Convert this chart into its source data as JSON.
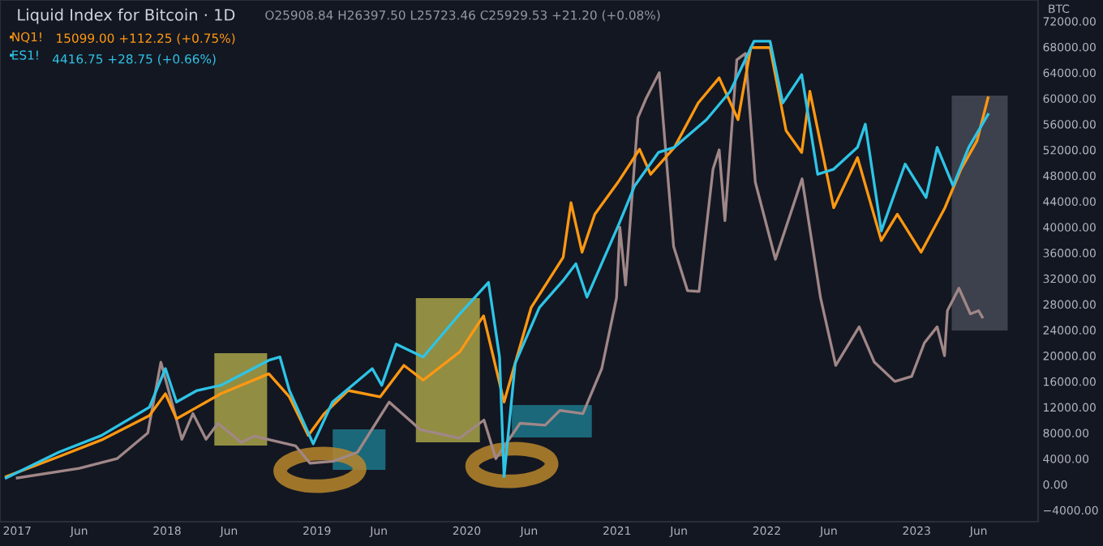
{
  "chart_data": {
    "type": "line",
    "title": "Liquid Index for Bitcoin · 1D",
    "subtitle": "O25908.84 H26397.50 L25723.46 C25929.53 +21.20 (+0.08%)",
    "ylabel": "BTC",
    "annotations": [
      "15099.00 +112.25 (+0.75%)",
      "4416.75 +28.75 (+0.66%)"
    ],
    "xlim": [
      "2016-11-20",
      "2023-10-24"
    ],
    "xticks": [
      {
        "value": "2017-01-01",
        "label": "2017"
      },
      {
        "value": "2017-06-01",
        "label": "Jun"
      },
      {
        "value": "2018-01-01",
        "label": "2018"
      },
      {
        "value": "2018-06-01",
        "label": "Jun"
      },
      {
        "value": "2019-01-01",
        "label": "2019"
      },
      {
        "value": "2019-06-01",
        "label": "Jun"
      },
      {
        "value": "2020-01-01",
        "label": "2020"
      },
      {
        "value": "2020-06-01",
        "label": "Jun"
      },
      {
        "value": "2021-01-01",
        "label": "2021"
      },
      {
        "value": "2021-06-01",
        "label": "Jun"
      },
      {
        "value": "2022-01-01",
        "label": "2022"
      },
      {
        "value": "2022-06-01",
        "label": "Jun"
      },
      {
        "value": "2023-01-01",
        "label": "2023"
      },
      {
        "value": "2023-06-01",
        "label": "Jun"
      }
    ],
    "ylim": [
      -5800,
      75300
    ],
    "yticks": [
      {
        "value": -4000,
        "label": "−4000.00"
      },
      {
        "value": 0,
        "label": "0.00"
      },
      {
        "value": 4000,
        "label": "4000.00"
      },
      {
        "value": 8000,
        "label": "8000.00"
      },
      {
        "value": 12000,
        "label": "12000.00"
      },
      {
        "value": 16000,
        "label": "16000.00"
      },
      {
        "value": 20000,
        "label": "20000.00"
      },
      {
        "value": 24000,
        "label": "24000.00"
      },
      {
        "value": 28000,
        "label": "28000.00"
      },
      {
        "value": 32000,
        "label": "32000.00"
      },
      {
        "value": 36000,
        "label": "36000.00"
      },
      {
        "value": 40000,
        "label": "40000.00"
      },
      {
        "value": 44000,
        "label": "44000.00"
      },
      {
        "value": 48000,
        "label": "48000.00"
      },
      {
        "value": 52000,
        "label": "52000.00"
      },
      {
        "value": 56000,
        "label": "56000.00"
      },
      {
        "value": 60000,
        "label": "60000.00"
      },
      {
        "value": 64000,
        "label": "64000.00"
      },
      {
        "value": 68000,
        "label": "68000.00"
      },
      {
        "value": 72000,
        "label": "72000.00"
      }
    ],
    "grid": false,
    "legend": "top left",
    "series": [
      {
        "color": "#a08787",
        "x": [
          "2017-01-01",
          "2017-06-01",
          "2017-09-01",
          "2017-11-15",
          "2017-12-17",
          "2018-02-06",
          "2018-03-05",
          "2018-04-06",
          "2018-05-05",
          "2018-07-01",
          "2018-08-01",
          "2018-11-10",
          "2018-12-15",
          "2019-02-10",
          "2019-04-10",
          "2019-06-26",
          "2019-09-10",
          "2019-12-15",
          "2020-02-12",
          "2020-03-12",
          "2020-05-10",
          "2020-07-10",
          "2020-08-15",
          "2020-10-10",
          "2020-11-25",
          "2020-12-31",
          "2021-01-08",
          "2021-01-22",
          "2021-02-21",
          "2021-03-13",
          "2021-04-14",
          "2021-05-19",
          "2021-06-22",
          "2021-07-20",
          "2021-08-23",
          "2021-09-07",
          "2021-09-21",
          "2021-10-20",
          "2021-11-10",
          "2021-12-04",
          "2022-01-22",
          "2022-03-28",
          "2022-05-12",
          "2022-06-18",
          "2022-08-14",
          "2022-09-20",
          "2022-11-09",
          "2022-12-20",
          "2023-01-20",
          "2023-02-20",
          "2023-03-10",
          "2023-03-17",
          "2023-04-14",
          "2023-05-12",
          "2023-06-01",
          "2023-06-10"
        ],
        "values": [
          1000,
          2500,
          4000,
          8000,
          19000,
          7000,
          11000,
          7000,
          9500,
          6500,
          7500,
          6000,
          3300,
          3600,
          5000,
          12800,
          8500,
          7200,
          10000,
          4000,
          9500,
          9200,
          11500,
          11000,
          18000,
          29000,
          40000,
          31000,
          57000,
          60000,
          64000,
          37000,
          30100,
          30000,
          49000,
          52000,
          41000,
          66000,
          67000,
          47000,
          35000,
          47500,
          29000,
          18500,
          24500,
          19000,
          16000,
          16800,
          22000,
          24500,
          20000,
          27000,
          30500,
          26500,
          27000,
          26000
        ]
      },
      {
        "name": "NQ1!",
        "color": "#ff9811",
        "x": [
          "2016-12-05",
          "2017-04-12",
          "2017-07-25",
          "2017-11-19",
          "2017-12-28",
          "2018-01-24",
          "2018-03-15",
          "2018-05-12",
          "2018-09-06",
          "2018-10-26",
          "2018-12-11",
          "2019-01-19",
          "2019-03-18",
          "2019-06-04",
          "2019-08-01",
          "2019-09-17",
          "2019-12-15",
          "2020-02-11",
          "2020-04-01",
          "2020-06-06",
          "2020-08-23",
          "2020-09-11",
          "2020-10-08",
          "2020-11-08",
          "2021-01-06",
          "2021-02-25",
          "2021-03-24",
          "2021-05-21",
          "2021-07-18",
          "2021-09-07",
          "2021-10-23",
          "2021-11-23",
          "2022-01-09",
          "2022-02-17",
          "2022-03-27",
          "2022-04-16",
          "2022-06-13",
          "2022-08-10",
          "2022-10-07",
          "2022-11-15",
          "2023-01-12",
          "2023-03-11",
          "2023-04-19",
          "2023-05-28",
          "2023-06-24"
        ],
        "values": [
          1200,
          4300,
          6900,
          10700,
          14100,
          10200,
          12000,
          14100,
          17200,
          13600,
          7600,
          11000,
          14600,
          13600,
          18500,
          16200,
          20600,
          26200,
          12800,
          27500,
          35300,
          43800,
          36100,
          42000,
          47200,
          52100,
          48200,
          52400,
          59300,
          63200,
          56700,
          67900,
          67900,
          55000,
          51600,
          61100,
          43000,
          50800,
          37900,
          42000,
          36100,
          43000,
          49000,
          53400,
          60100
        ]
      },
      {
        "name": "ES1!",
        "color": "#2ec4e6",
        "x": [
          "2016-12-05",
          "2017-04-12",
          "2017-07-25",
          "2017-11-19",
          "2017-12-28",
          "2018-01-24",
          "2018-03-15",
          "2018-05-12",
          "2018-09-06",
          "2018-10-03",
          "2018-10-26",
          "2018-12-23",
          "2019-02-08",
          "2019-05-16",
          "2019-06-08",
          "2019-07-13",
          "2019-09-17",
          "2019-12-15",
          "2020-02-23",
          "2020-03-21",
          "2020-04-01",
          "2020-04-28",
          "2020-06-26",
          "2020-08-23",
          "2020-09-23",
          "2020-10-20",
          "2021-01-06",
          "2021-02-13",
          "2021-04-12",
          "2021-05-21",
          "2021-08-07",
          "2021-10-04",
          "2021-12-01",
          "2022-01-09",
          "2022-02-09",
          "2022-03-27",
          "2022-05-05",
          "2022-06-13",
          "2022-08-10",
          "2022-08-29",
          "2022-10-07",
          "2022-12-04",
          "2023-01-24",
          "2023-02-20",
          "2023-03-31",
          "2023-05-08",
          "2023-06-24"
        ],
        "values": [
          1000,
          5000,
          7600,
          12000,
          18000,
          12800,
          14600,
          15400,
          19300,
          19800,
          14600,
          6300,
          12800,
          18000,
          15400,
          21800,
          19800,
          26500,
          31400,
          19800,
          1200,
          18800,
          27500,
          31700,
          34300,
          29100,
          40500,
          46400,
          51600,
          52400,
          56700,
          61100,
          68900,
          68900,
          59300,
          63700,
          48200,
          49000,
          52400,
          56000,
          39400,
          49800,
          44600,
          52400,
          46400,
          52400,
          57500
        ]
      }
    ]
  }
}
